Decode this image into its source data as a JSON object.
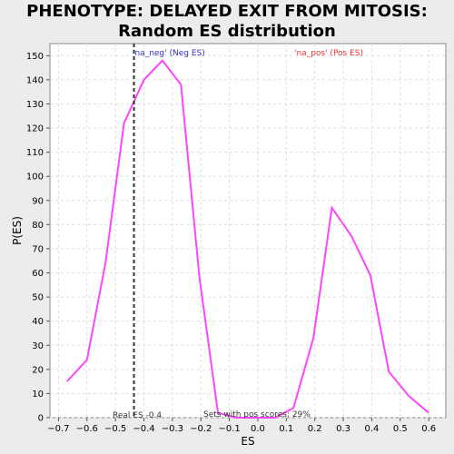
{
  "chart_data": {
    "type": "line",
    "title": "PHENOTYPE: DELAYED EXIT FROM MITOSIS: Random ES distribution",
    "xlabel": "ES",
    "ylabel": "P(ES)",
    "xlim": [
      -0.73,
      0.66
    ],
    "ylim": [
      0,
      155
    ],
    "xticks": [
      "-0.7",
      "-0.6",
      "-0.5",
      "-0.4",
      "-0.3",
      "-0.2",
      "-0.1",
      "0.0",
      "0.1",
      "0.2",
      "0.3",
      "0.4",
      "0.5",
      "0.6"
    ],
    "yticks": [
      "0",
      "10",
      "20",
      "30",
      "40",
      "50",
      "60",
      "70",
      "80",
      "90",
      "100",
      "110",
      "120",
      "130",
      "140",
      "150"
    ],
    "grid": true,
    "line_color": "#ff44ff",
    "series": [
      {
        "x": [
          -0.67,
          -0.6,
          -0.535,
          -0.47,
          -0.4,
          -0.335,
          -0.27,
          -0.205,
          -0.14,
          -0.075,
          -0.01,
          0.06,
          0.125,
          0.195,
          0.26,
          0.33,
          0.395,
          0.46,
          0.53,
          0.6
        ],
        "values": [
          15,
          24,
          64,
          122,
          140,
          148,
          138,
          58,
          2,
          0,
          0,
          0,
          4,
          33,
          87,
          75,
          59,
          19,
          9,
          2
        ]
      }
    ],
    "annotations": {
      "neg_label": "'na_neg' (Neg ES)",
      "pos_label": "'na_pos' (Pos ES)",
      "real_es_label": "Real ES -0.4",
      "sets_label": "Sets with pos scores: 29%",
      "real_es_value": -0.435,
      "neg_color": "#3333cc",
      "pos_color": "#ee3333"
    }
  }
}
